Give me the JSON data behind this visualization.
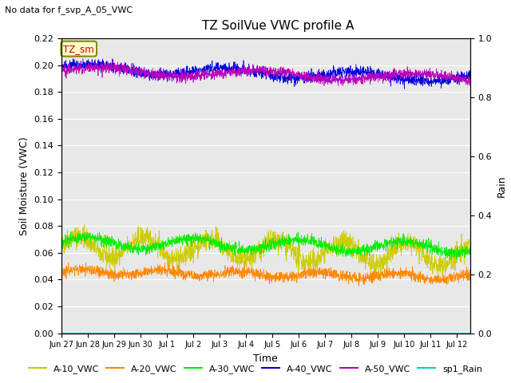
{
  "title": "TZ SoilVue VWC profile A",
  "top_left_text": "No data for f_svp_A_05_VWC",
  "ylabel_left": "Soil Moisture (VWC)",
  "ylabel_right": "Rain",
  "xlabel": "Time",
  "ylim_left": [
    0.0,
    0.22
  ],
  "ylim_right": [
    0.0,
    1.0
  ],
  "background_color": "#e8e8e8",
  "fig_background": "#ffffff",
  "x_tick_labels": [
    "Jun 27",
    "Jun 28",
    "Jun 29",
    "Jun 30",
    "Jul 1",
    "Jul 2",
    "Jul 3",
    "Jul 4",
    "Jul 5",
    "Jul 6",
    "Jul 7",
    "Jul 8",
    "Jul 9",
    "Jul 10",
    "Jul 11",
    "Jul 12"
  ],
  "series": {
    "A10": {
      "color": "#cccc00",
      "base": 0.065,
      "amplitude": 0.008,
      "period": 2.5,
      "trend": -0.007,
      "noise": 0.004
    },
    "A20": {
      "color": "#ff8800",
      "base": 0.046,
      "amplitude": 0.002,
      "period": 3.0,
      "trend": -0.004,
      "noise": 0.002
    },
    "A30": {
      "color": "#00ee00",
      "base": 0.068,
      "amplitude": 0.004,
      "period": 4.0,
      "trend": -0.004,
      "noise": 0.002
    },
    "A40": {
      "color": "#0000dd",
      "base": 0.198,
      "amplitude": 0.003,
      "period": 5.0,
      "trend": -0.008,
      "noise": 0.002
    },
    "A50": {
      "color": "#bb00bb",
      "base": 0.196,
      "amplitude": 0.003,
      "period": 6.0,
      "trend": -0.006,
      "noise": 0.002
    },
    "Rain": {
      "color": "#00cccc",
      "base": 0.0,
      "noise": 0.0
    }
  },
  "legend_items": [
    {
      "label": "A-10_VWC",
      "color": "#cccc00"
    },
    {
      "label": "A-20_VWC",
      "color": "#ff8800"
    },
    {
      "label": "A-30_VWC",
      "color": "#00ee00"
    },
    {
      "label": "A-40_VWC",
      "color": "#0000dd"
    },
    {
      "label": "A-50_VWC",
      "color": "#bb00bb"
    },
    {
      "label": "sp1_Rain",
      "color": "#00cccc"
    }
  ],
  "annotation_text": "TZ_sm",
  "annotation_color": "#cc0000",
  "annotation_bg": "#ffffcc",
  "annotation_border": "#888800",
  "yticks_left": [
    0.0,
    0.02,
    0.04,
    0.06,
    0.08,
    0.1,
    0.12,
    0.14,
    0.16,
    0.18,
    0.2,
    0.22
  ],
  "yticks_right": [
    0.0,
    0.2,
    0.4,
    0.6,
    0.8,
    1.0
  ]
}
